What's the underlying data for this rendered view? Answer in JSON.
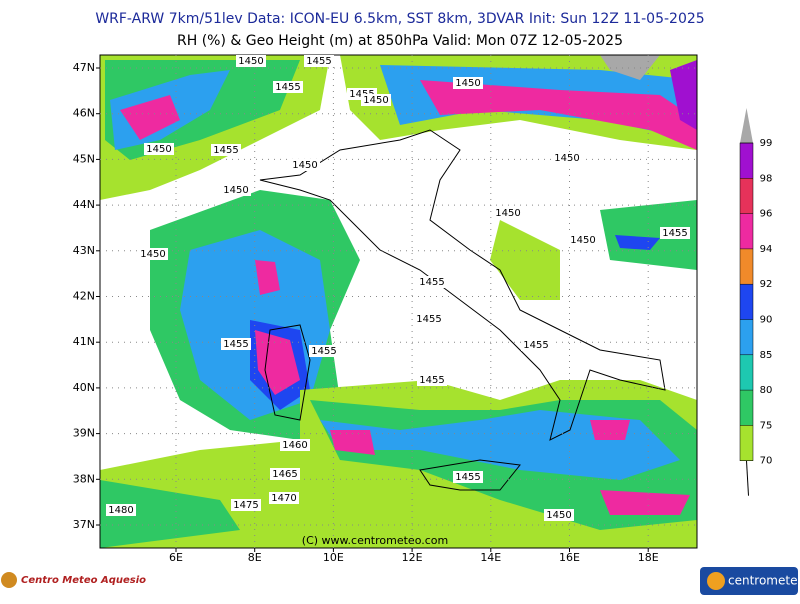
{
  "header": {
    "title": "WRF-ARW 7km/51lev  Data: ICON-EU 6.5km, SST 8km, 3DVAR  Init: Sun 12Z 11-05-2025",
    "subtitle": "RH (%) & Geo Height (m) at 850hPa  Valid: Mon 07Z 12-05-2025"
  },
  "map": {
    "lat_labels": [
      "47N",
      "46N",
      "45N",
      "44N",
      "43N",
      "42N",
      "41N",
      "40N",
      "39N",
      "38N",
      "37N"
    ],
    "lon_labels": [
      "6E",
      "8E",
      "10E",
      "12E",
      "14E",
      "16E",
      "18E"
    ],
    "contour_labels": [
      "1450",
      "1455",
      "1455",
      "1455",
      "1450",
      "1450",
      "1450",
      "1455",
      "1450",
      "1450",
      "1450",
      "1450",
      "1450",
      "1455",
      "1450",
      "1455",
      "1455",
      "1455",
      "1455",
      "1455",
      "1455",
      "1460",
      "1465",
      "1455",
      "1480",
      "1475",
      "1470",
      "1450"
    ],
    "copyright": "(C) www.centrometeo.com"
  },
  "colorbar": {
    "ticks": [
      70,
      75,
      80,
      85,
      90,
      92,
      94,
      96,
      98,
      99
    ],
    "colors": [
      "#a6e22e",
      "#2fc864",
      "#1ec8b0",
      "#2ca0ef",
      "#1e46f0",
      "#f08a2a",
      "#ee2aa0",
      "#e6325a",
      "#a010d0"
    ],
    "over_color": "#a8a8a8"
  },
  "footer": {
    "left_logo": "Centro Meteo Aquesio",
    "right_logo": "centrometeo"
  }
}
